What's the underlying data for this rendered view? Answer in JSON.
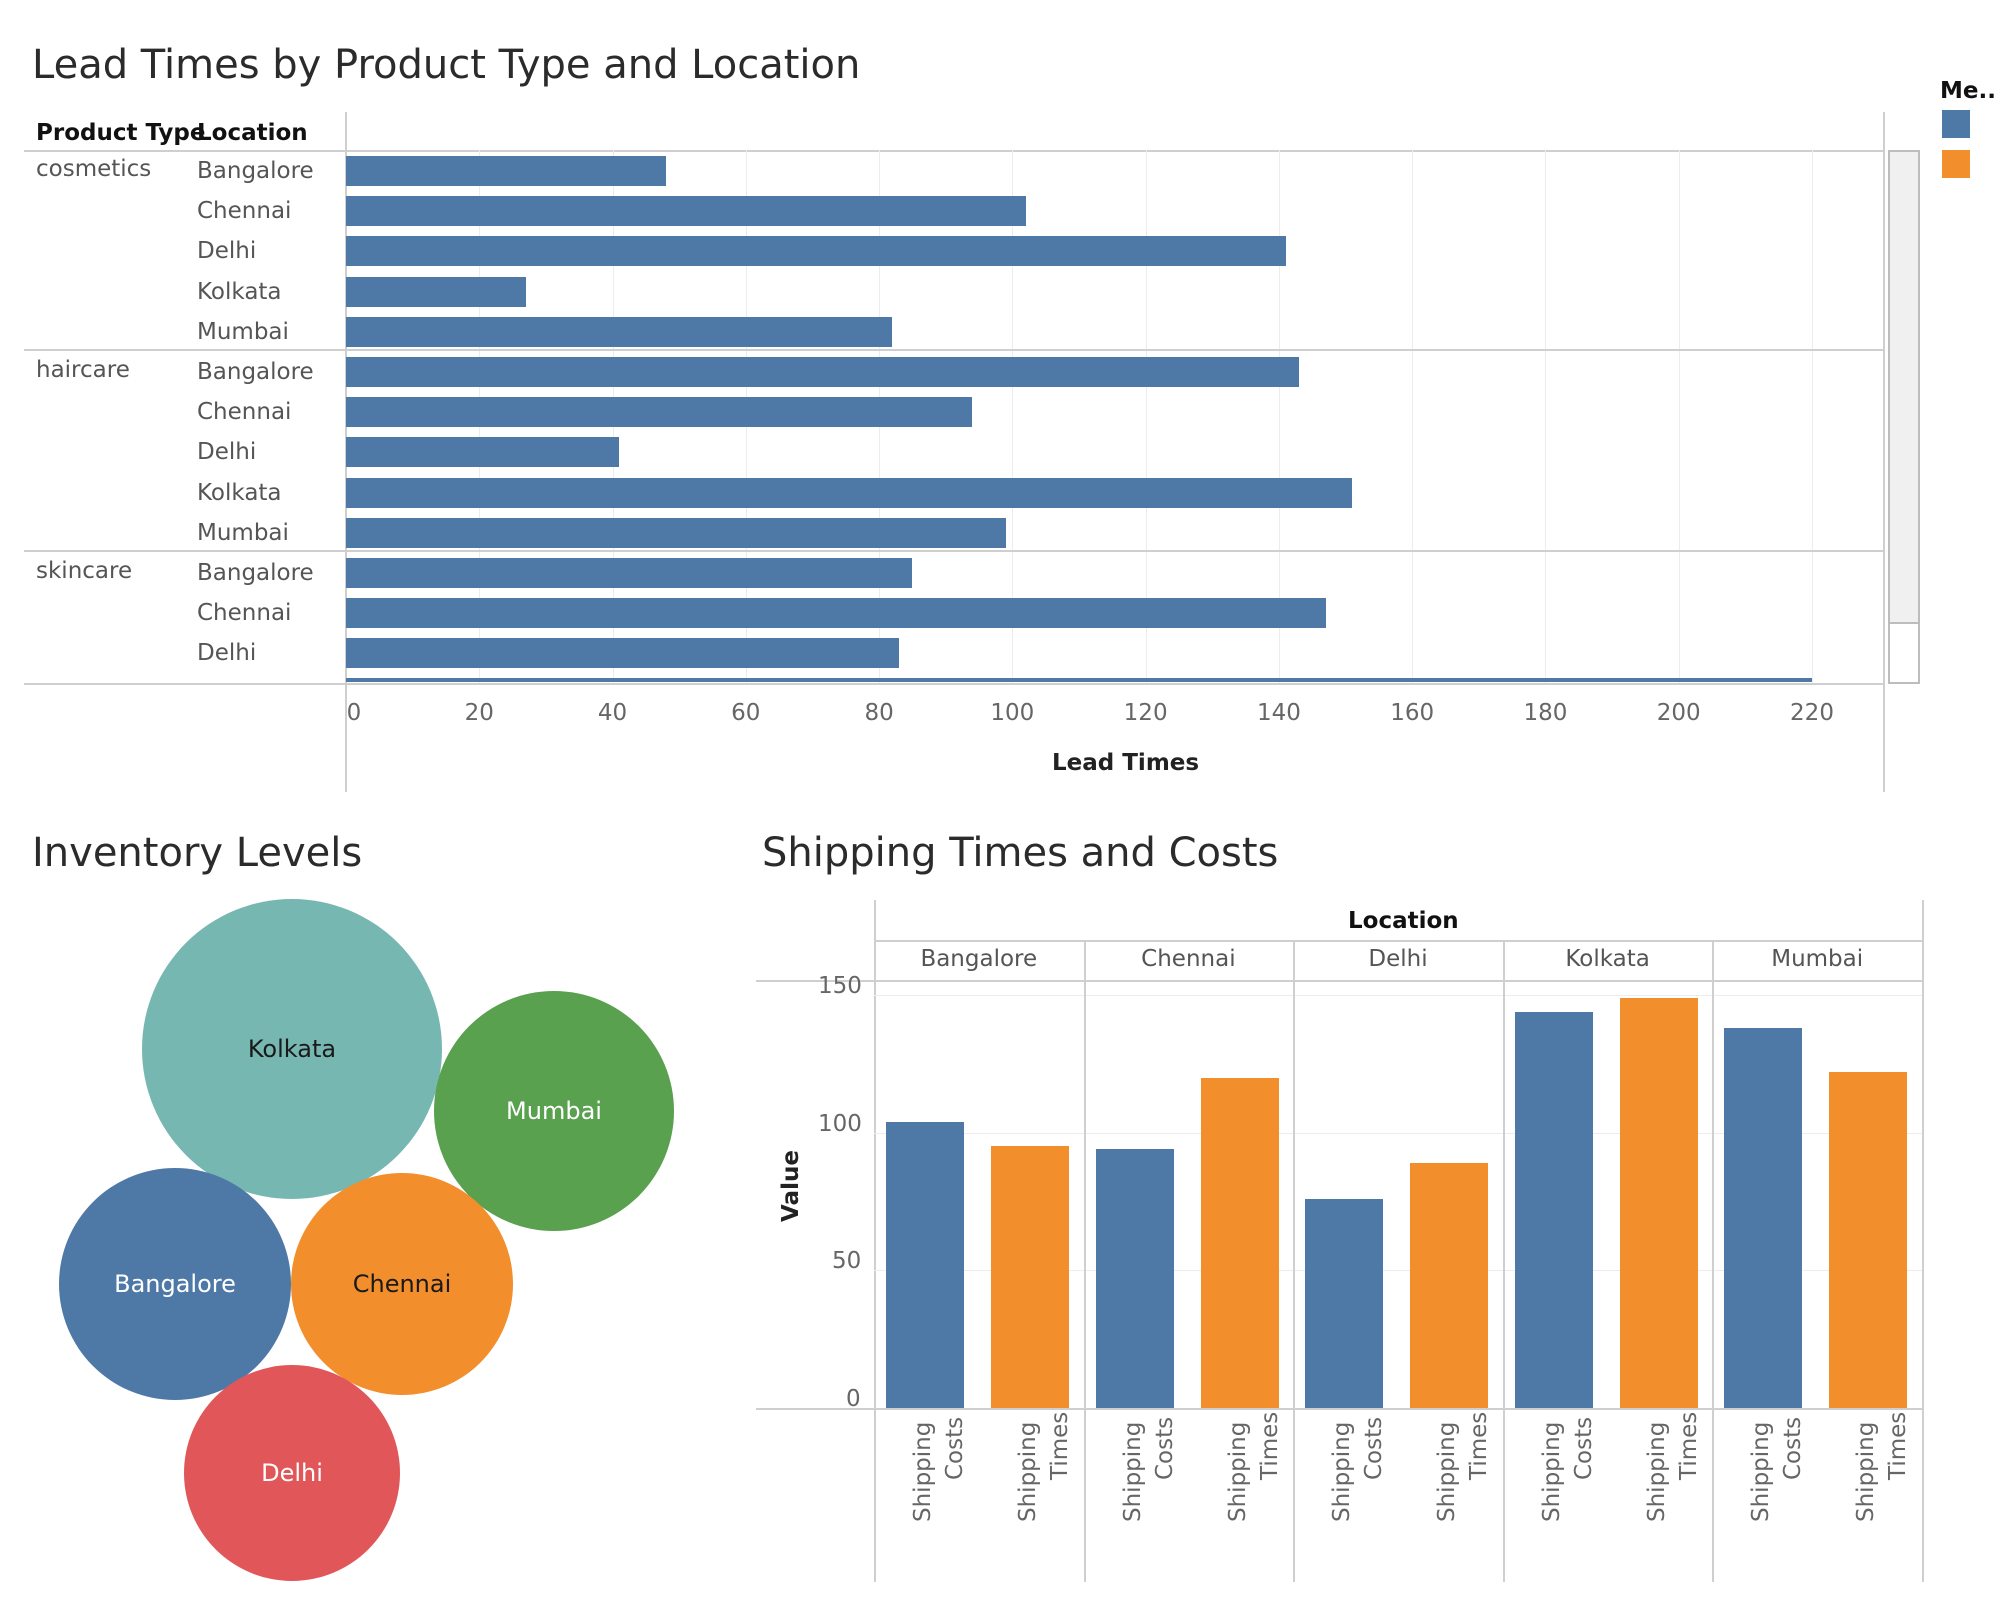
{
  "dashboard": {
    "lead_title": "Lead Times by Product Type and Location",
    "inventory_title": "Inventory Levels",
    "shipping_title": "Shipping Times and Costs",
    "legend": {
      "title": "Me..",
      "items": [
        {
          "label": "Shipping Costs",
          "color": "#4e79a7"
        },
        {
          "label": "Shipping Times",
          "color": "#f28e2b"
        }
      ]
    }
  },
  "lead_headers": {
    "product_type": "Product Type",
    "location": "Location"
  },
  "chart_data": [
    {
      "type": "bar",
      "orientation": "horizontal",
      "title": "Lead Times by Product Type and Location",
      "xlabel": "Lead Times",
      "xlim": [
        0,
        220
      ],
      "xticks": [
        0,
        20,
        40,
        60,
        80,
        100,
        120,
        140,
        160,
        180,
        200,
        220
      ],
      "groups": [
        {
          "product_type": "cosmetics",
          "rows": [
            {
              "location": "Bangalore",
              "value": 48
            },
            {
              "location": "Chennai",
              "value": 102
            },
            {
              "location": "Delhi",
              "value": 141
            },
            {
              "location": "Kolkata",
              "value": 27
            },
            {
              "location": "Mumbai",
              "value": 82
            }
          ]
        },
        {
          "product_type": "haircare",
          "rows": [
            {
              "location": "Bangalore",
              "value": 143
            },
            {
              "location": "Chennai",
              "value": 94
            },
            {
              "location": "Delhi",
              "value": 41
            },
            {
              "location": "Kolkata",
              "value": 151
            },
            {
              "location": "Mumbai",
              "value": 99
            }
          ]
        },
        {
          "product_type": "skincare",
          "rows": [
            {
              "location": "Bangalore",
              "value": 85
            },
            {
              "location": "Chennai",
              "value": 147
            },
            {
              "location": "Delhi",
              "value": 83
            }
          ]
        }
      ],
      "partial_row_value": 220,
      "color": "#4e79a7",
      "grid": true
    },
    {
      "type": "bubble",
      "title": "Inventory Levels",
      "items": [
        {
          "label": "Kolkata",
          "color": "#76b7b2",
          "text_color": "#1a1a1a"
        },
        {
          "label": "Mumbai",
          "color": "#59a14f",
          "text_color": "#ffffff"
        },
        {
          "label": "Bangalore",
          "color": "#4e79a7",
          "text_color": "#ffffff"
        },
        {
          "label": "Chennai",
          "color": "#f28e2b",
          "text_color": "#1a1a1a"
        },
        {
          "label": "Delhi",
          "color": "#e15759",
          "text_color": "#ffffff"
        }
      ]
    },
    {
      "type": "bar",
      "title": "Shipping Times and Costs",
      "column_header": "Location",
      "ylabel": "Value",
      "ylim": [
        0,
        150
      ],
      "yticks": [
        0,
        50,
        100,
        150
      ],
      "measure_label_lines": [
        [
          "Shipping",
          "Costs"
        ],
        [
          "Shipping",
          "Times"
        ]
      ],
      "categories": [
        "Bangalore",
        "Chennai",
        "Delhi",
        "Kolkata",
        "Mumbai"
      ],
      "series": [
        {
          "name": "Shipping Costs",
          "color": "#4e79a7",
          "values": [
            104,
            94,
            76,
            144,
            138
          ]
        },
        {
          "name": "Shipping Times",
          "color": "#f28e2b",
          "values": [
            95,
            120,
            89,
            149,
            122
          ]
        }
      ],
      "grid": true
    }
  ]
}
